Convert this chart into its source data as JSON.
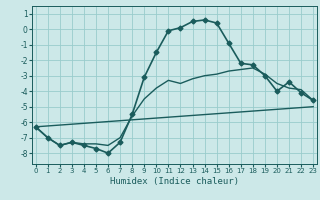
{
  "title": "",
  "xlabel": "Humidex (Indice chaleur)",
  "ylabel": "",
  "bg_color": "#cce8e8",
  "grid_color": "#99cccc",
  "line_color": "#1a5c5c",
  "x_ticks": [
    0,
    1,
    2,
    3,
    4,
    5,
    6,
    7,
    8,
    9,
    10,
    11,
    12,
    13,
    14,
    15,
    16,
    17,
    18,
    19,
    20,
    21,
    22,
    23
  ],
  "y_ticks": [
    -8,
    -7,
    -6,
    -5,
    -4,
    -3,
    -2,
    -1,
    0,
    1
  ],
  "ylim": [
    -8.7,
    1.5
  ],
  "xlim": [
    -0.3,
    23.3
  ],
  "series0_x": [
    0,
    1,
    2,
    3,
    4,
    5,
    6,
    7,
    8,
    9,
    10,
    11,
    12,
    13,
    14,
    15,
    16,
    17,
    18,
    19,
    20,
    21,
    22,
    23
  ],
  "series0_y": [
    -6.3,
    -7.0,
    -7.5,
    -7.3,
    -7.5,
    -7.7,
    -8.0,
    -7.3,
    -5.5,
    -3.1,
    -1.5,
    -0.1,
    0.1,
    0.5,
    0.6,
    0.4,
    -0.9,
    -2.2,
    -2.3,
    -3.0,
    -4.0,
    -3.4,
    -4.1,
    -4.6
  ],
  "series1_x": [
    0,
    1,
    2,
    3,
    4,
    5,
    6,
    7,
    8,
    9,
    10,
    11,
    12,
    13,
    14,
    15,
    16,
    17,
    18,
    19,
    20,
    21,
    22,
    23
  ],
  "series1_y": [
    -6.3,
    -7.0,
    -7.5,
    -7.3,
    -7.4,
    -7.4,
    -7.5,
    -7.0,
    -5.6,
    -4.5,
    -3.8,
    -3.3,
    -3.5,
    -3.2,
    -3.0,
    -2.9,
    -2.7,
    -2.6,
    -2.5,
    -2.9,
    -3.5,
    -3.8,
    -3.9,
    -4.6
  ],
  "series2_x": [
    0,
    23
  ],
  "series2_y": [
    -6.3,
    -5.0
  ]
}
